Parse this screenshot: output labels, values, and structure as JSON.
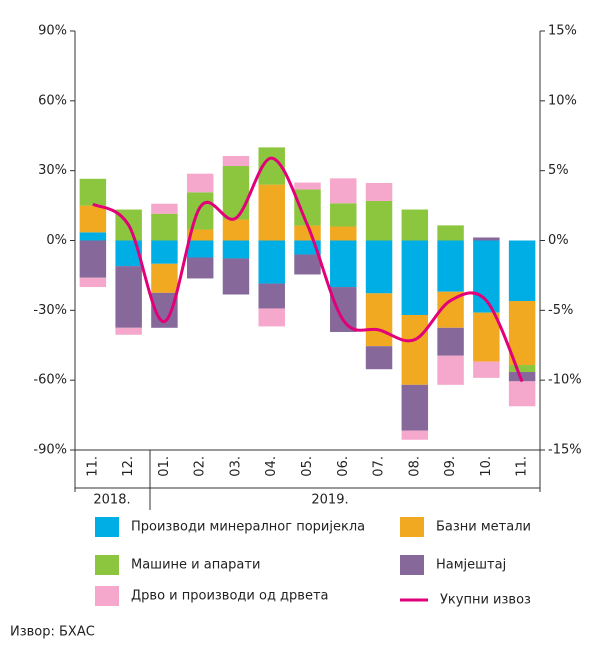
{
  "chart_data": {
    "type": "bar",
    "categories": [
      "11.",
      "12.",
      "01.",
      "02.",
      "03.",
      "04.",
      "05.",
      "06.",
      "07.",
      "08.",
      "09.",
      "10.",
      "11."
    ],
    "x_groups": [
      "2018.",
      "2019."
    ],
    "stacked": true,
    "series": [
      {
        "name": "Производи минералног поријекла",
        "color": "#00aee6",
        "values": [
          3.5,
          -11,
          -10,
          -7.3,
          -7.7,
          -18.5,
          -6,
          -20,
          -22.7,
          -32,
          -22,
          -31,
          -26
        ]
      },
      {
        "name": "Базни метали",
        "color": "#f2a922",
        "values": [
          11.5,
          0,
          -12.5,
          4.7,
          9,
          24,
          6.4,
          6,
          -22.7,
          -30,
          -15.5,
          -21,
          -27.5
        ]
      },
      {
        "name": "Машине и апарати",
        "color": "#8cc63f",
        "values": [
          11.5,
          13.3,
          11.5,
          16,
          23,
          16,
          15.5,
          10,
          17,
          13.3,
          6.5,
          0,
          -3
        ]
      },
      {
        "name": "Намјештај",
        "color": "#86689a",
        "values": [
          -16,
          -26.5,
          -15,
          -9,
          -15.5,
          -10.7,
          -8.6,
          -19.3,
          -9.9,
          -19.7,
          -12,
          1.3,
          -4
        ]
      },
      {
        "name": "Дрво и производи од дрвета",
        "color": "#f5a8cb",
        "values": [
          -4,
          -3,
          4.3,
          8,
          4.3,
          -7.7,
          3,
          10.7,
          7.7,
          -3.9,
          -12.5,
          -7,
          -10.7
        ]
      },
      {
        "name": "Укупни извоз",
        "type": "line",
        "axis": "y2",
        "color": "#e2007a",
        "values": [
          2.6,
          1.1,
          -5.8,
          2.4,
          1.6,
          5.9,
          1.1,
          -5.7,
          -6.4,
          -7.1,
          -4.3,
          -4.3,
          -10.1
        ]
      }
    ],
    "ylim": [
      -90,
      90
    ],
    "yticks": [
      {
        "value": -90,
        "label": "-90%"
      },
      {
        "value": -60,
        "label": "-60%"
      },
      {
        "value": -30,
        "label": "-30%"
      },
      {
        "value": 0,
        "label": "0%"
      },
      {
        "value": 30,
        "label": "30%"
      },
      {
        "value": 60,
        "label": "60%"
      },
      {
        "value": 90,
        "label": "90%"
      }
    ],
    "y2lim": [
      -15,
      15
    ],
    "y2ticks": [
      {
        "value": -15,
        "label": "-15%"
      },
      {
        "value": -10,
        "label": "-10%"
      },
      {
        "value": -5,
        "label": "-5%"
      },
      {
        "value": 0,
        "label": "0%"
      },
      {
        "value": 5,
        "label": "5%"
      },
      {
        "value": 10,
        "label": "10%"
      },
      {
        "value": 15,
        "label": "15%"
      }
    ],
    "source": "Извор: БХАС"
  }
}
